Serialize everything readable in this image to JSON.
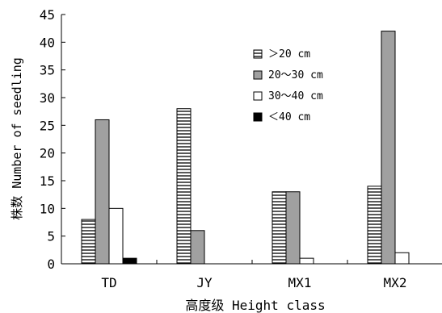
{
  "chart_data": {
    "type": "bar",
    "categories": [
      "TD",
      "JY",
      "MX1",
      "MX2"
    ],
    "series": [
      {
        "name": "＞20 cm",
        "pattern": "horizontal-stripes",
        "color": "#ffffff",
        "values": [
          8,
          28,
          13,
          14
        ]
      },
      {
        "name": "20～30 cm",
        "pattern": "solid",
        "color": "#a0a0a0",
        "values": [
          26,
          6,
          13,
          42
        ]
      },
      {
        "name": "30～40 cm",
        "pattern": "solid",
        "color": "#ffffff",
        "values": [
          10,
          0,
          1,
          2
        ]
      },
      {
        "name": "＜40 cm",
        "pattern": "solid",
        "color": "#000000",
        "values": [
          1,
          0,
          0,
          0
        ]
      }
    ],
    "xlabel": "高度级 Height class",
    "ylabel": "株数 Number of seedling",
    "ylim": [
      0,
      45
    ],
    "yticks": [
      0,
      5,
      10,
      15,
      20,
      25,
      30,
      35,
      40,
      45
    ],
    "grid": false,
    "legend_position": "top-right"
  }
}
